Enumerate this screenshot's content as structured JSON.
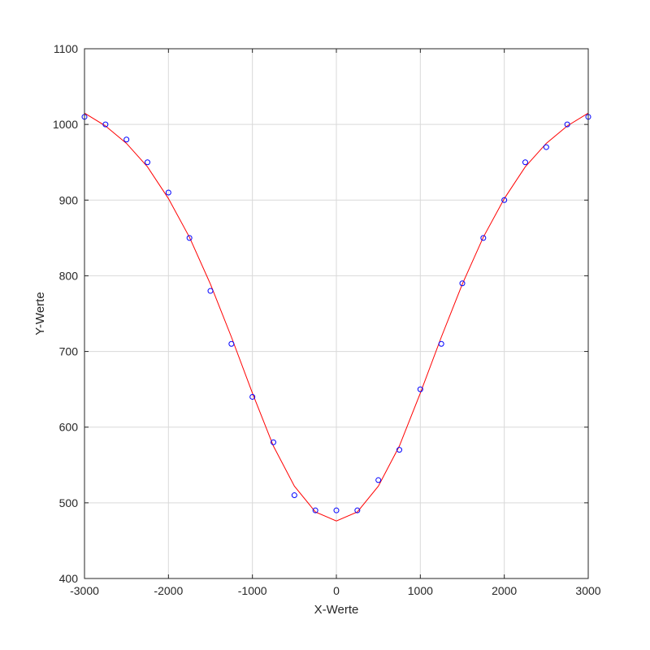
{
  "chart_data": {
    "type": "line",
    "title": "",
    "xlabel": "X-Werte",
    "ylabel": "Y-Werte",
    "xlim": [
      -3000,
      3000
    ],
    "ylim": [
      400,
      1100
    ],
    "grid": true,
    "x_ticks": [
      -3000,
      -2000,
      -1000,
      0,
      1000,
      2000,
      3000
    ],
    "y_ticks": [
      400,
      500,
      600,
      700,
      800,
      900,
      1000,
      1100
    ],
    "series": [
      {
        "kind": "scatter",
        "marker": "circle-open",
        "color": "#0000ff",
        "x": [
          -3000,
          -2750,
          -2500,
          -2250,
          -2000,
          -1750,
          -1500,
          -1250,
          -1000,
          -750,
          -500,
          -250,
          0,
          250,
          500,
          750,
          1000,
          1250,
          1500,
          1750,
          2000,
          2250,
          2500,
          2750,
          3000
        ],
        "y": [
          1010,
          1000,
          980,
          950,
          910,
          850,
          780,
          710,
          640,
          580,
          510,
          490,
          490,
          490,
          530,
          570,
          650,
          710,
          790,
          850,
          900,
          950,
          970,
          1000,
          1010
        ]
      },
      {
        "kind": "line",
        "color": "#ff0000",
        "x": [
          -3000,
          -2750,
          -2500,
          -2250,
          -2000,
          -1750,
          -1500,
          -1250,
          -1000,
          -750,
          -500,
          -250,
          0,
          250,
          500,
          750,
          1000,
          1250,
          1500,
          1750,
          2000,
          2250,
          2500,
          2750,
          3000
        ],
        "y": [
          1015,
          998,
          975,
          944,
          902,
          851,
          789,
          719,
          645,
          575,
          522,
          488,
          476,
          488,
          522,
          575,
          645,
          719,
          789,
          851,
          902,
          944,
          975,
          998,
          1015
        ]
      }
    ]
  }
}
